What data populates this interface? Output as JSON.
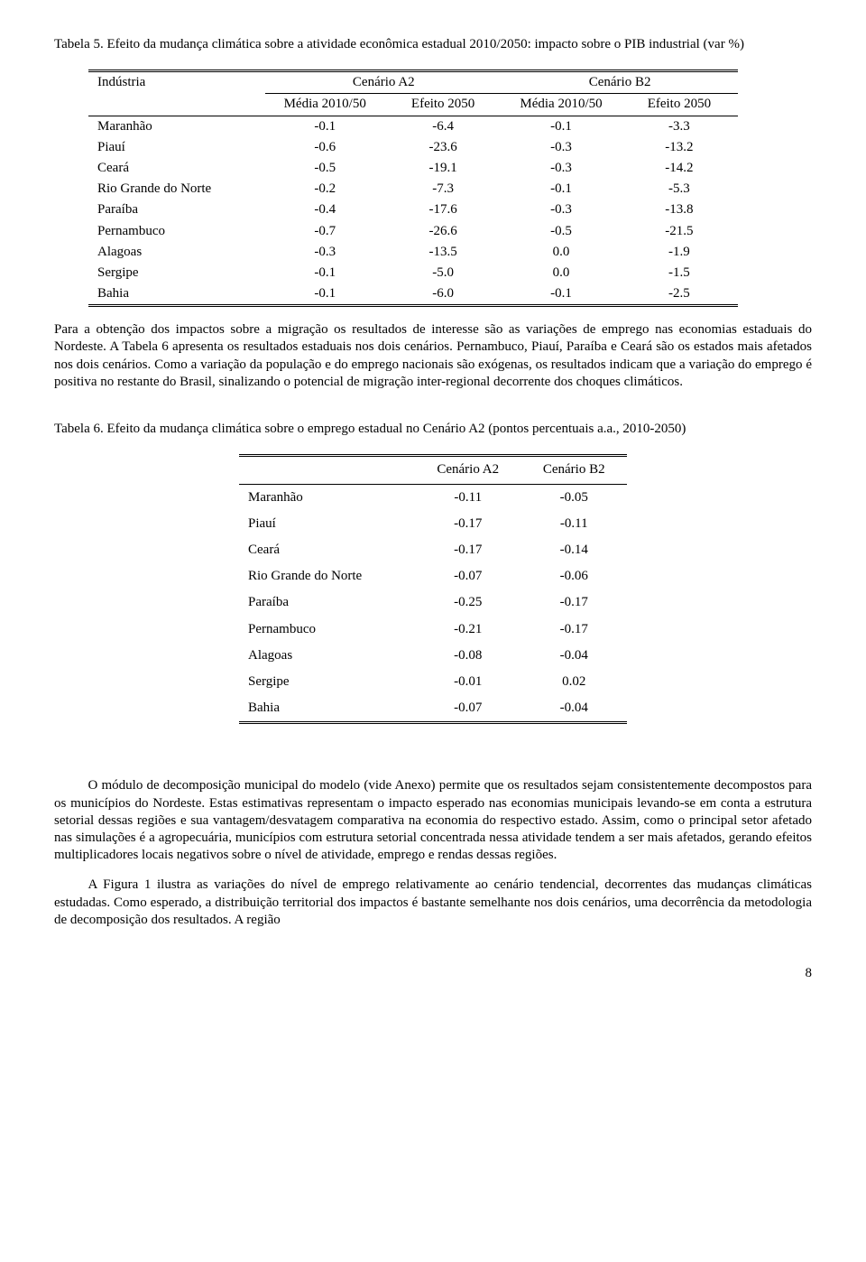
{
  "table5": {
    "caption": "Tabela 5. Efeito da mudança climática sobre a atividade econômica estadual 2010/2050: impacto sobre o PIB industrial (var %)",
    "header_main": "Indústria",
    "scenA": "Cenário A2",
    "scenB": "Cenário B2",
    "sub_media": "Média 2010/50",
    "sub_efeito": "Efeito 2050",
    "rows": [
      {
        "label": "Maranhão",
        "a1": "-0.1",
        "a2": "-6.4",
        "b1": "-0.1",
        "b2": "-3.3"
      },
      {
        "label": "Piauí",
        "a1": "-0.6",
        "a2": "-23.6",
        "b1": "-0.3",
        "b2": "-13.2"
      },
      {
        "label": "Ceará",
        "a1": "-0.5",
        "a2": "-19.1",
        "b1": "-0.3",
        "b2": "-14.2"
      },
      {
        "label": "Rio Grande do Norte",
        "a1": "-0.2",
        "a2": "-7.3",
        "b1": "-0.1",
        "b2": "-5.3"
      },
      {
        "label": "Paraíba",
        "a1": "-0.4",
        "a2": "-17.6",
        "b1": "-0.3",
        "b2": "-13.8"
      },
      {
        "label": "Pernambuco",
        "a1": "-0.7",
        "a2": "-26.6",
        "b1": "-0.5",
        "b2": "-21.5"
      },
      {
        "label": "Alagoas",
        "a1": "-0.3",
        "a2": "-13.5",
        "b1": "0.0",
        "b2": "-1.9"
      },
      {
        "label": "Sergipe",
        "a1": "-0.1",
        "a2": "-5.0",
        "b1": "0.0",
        "b2": "-1.5"
      },
      {
        "label": "Bahia",
        "a1": "-0.1",
        "a2": "-6.0",
        "b1": "-0.1",
        "b2": "-2.5"
      }
    ]
  },
  "para1": "Para a obtenção dos impactos sobre a migração os resultados de interesse são as variações de emprego nas economias estaduais do Nordeste. A Tabela 6 apresenta os resultados estaduais nos dois cenários. Pernambuco, Piauí, Paraíba e Ceará são os estados mais afetados nos dois cenários. Como a variação da população e do emprego nacionais são exógenas, os resultados indicam que a variação do emprego é positiva no restante do Brasil, sinalizando o potencial de migração inter-regional decorrente dos choques climáticos.",
  "table6": {
    "caption": "Tabela 6. Efeito da mudança climática sobre o emprego estadual no Cenário A2 (pontos percentuais a.a., 2010-2050)",
    "scenA": "Cenário A2",
    "scenB": "Cenário B2",
    "rows": [
      {
        "label": "Maranhão",
        "a": "-0.11",
        "b": "-0.05"
      },
      {
        "label": "Piauí",
        "a": "-0.17",
        "b": "-0.11"
      },
      {
        "label": "Ceará",
        "a": "-0.17",
        "b": "-0.14"
      },
      {
        "label": "Rio Grande do Norte",
        "a": "-0.07",
        "b": "-0.06"
      },
      {
        "label": "Paraíba",
        "a": "-0.25",
        "b": "-0.17"
      },
      {
        "label": "Pernambuco",
        "a": "-0.21",
        "b": "-0.17"
      },
      {
        "label": "Alagoas",
        "a": "-0.08",
        "b": "-0.04"
      },
      {
        "label": "Sergipe",
        "a": "-0.01",
        "b": "0.02"
      },
      {
        "label": "Bahia",
        "a": "-0.07",
        "b": "-0.04"
      }
    ]
  },
  "para2": "O módulo de decomposição municipal do modelo (vide Anexo) permite que os resultados sejam consistentemente decompostos para os municípios do Nordeste. Estas estimativas representam o impacto esperado nas economias municipais levando-se em conta a estrutura setorial dessas regiões e sua vantagem/desvatagem comparativa na economia do respectivo estado. Assim, como o principal setor afetado nas simulações é a agropecuária, municípios com estrutura setorial concentrada nessa atividade tendem a ser mais afetados, gerando efeitos multiplicadores locais negativos sobre o nível de atividade, emprego e rendas dessas regiões.",
  "para3": "A Figura 1 ilustra as variações do nível de emprego relativamente ao cenário tendencial, decorrentes das mudanças climáticas estudadas. Como esperado, a distribuição territorial dos impactos é bastante semelhante nos dois cenários, uma decorrência da metodologia de decomposição dos resultados. A região",
  "pagenum": "8"
}
